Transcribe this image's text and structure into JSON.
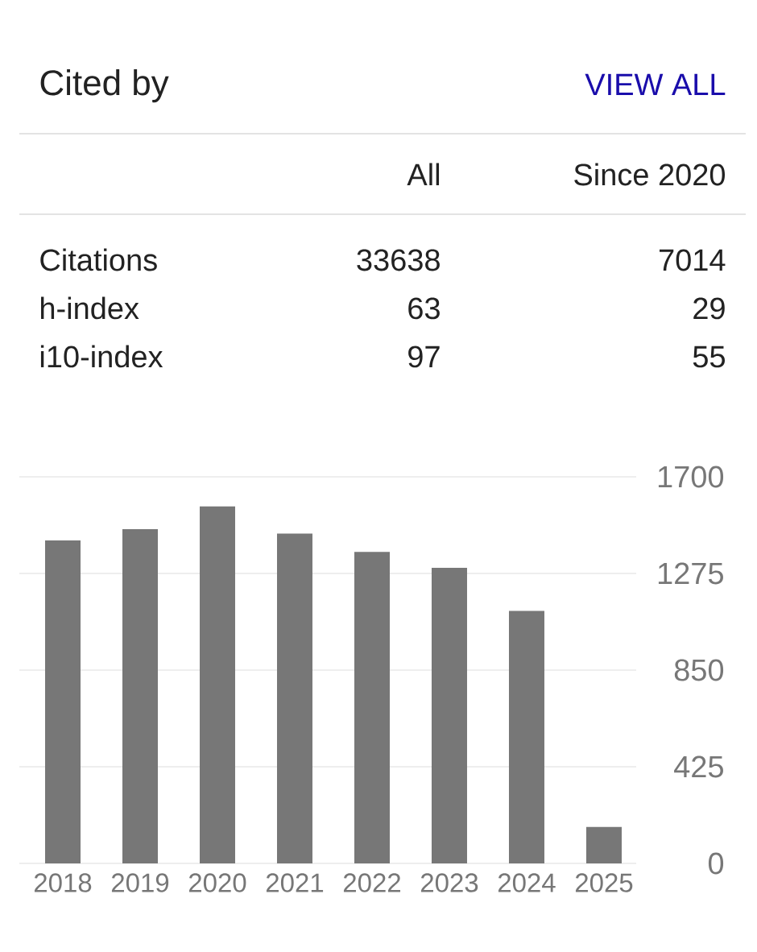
{
  "chart_data": [
    {
      "type": "other",
      "title": "Cited by",
      "annotations": [
        "VIEW ALL"
      ],
      "categories": [
        "Citations",
        "h-index",
        "i10-index"
      ],
      "series": [
        {
          "name": "All",
          "values": [
            33638,
            63,
            97
          ]
        },
        {
          "name": "Since 2020",
          "values": [
            7014,
            29,
            55
          ]
        }
      ],
      "data_labels": true
    },
    {
      "type": "bar",
      "categories": [
        "2018",
        "2019",
        "2020",
        "2021",
        "2022",
        "2023",
        "2024",
        "2025"
      ],
      "values": [
        1420,
        1470,
        1570,
        1450,
        1370,
        1300,
        1110,
        160
      ],
      "color": "#777777",
      "ylim": [
        0,
        1700
      ],
      "yticks": [
        0,
        425,
        850,
        1275,
        1700
      ],
      "grid": "y"
    }
  ]
}
